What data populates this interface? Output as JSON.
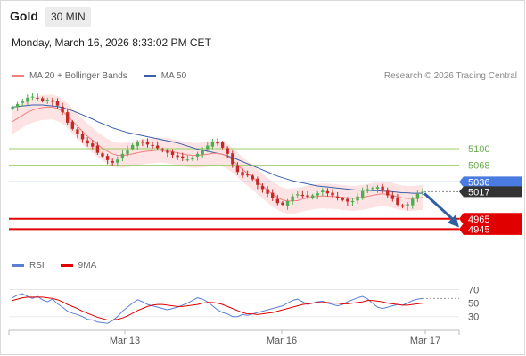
{
  "header": {
    "title": "Gold",
    "interval": "30 MIN",
    "datetime": "Monday, March 16, 2026 8:33:02 PM CET"
  },
  "legend": {
    "items": [
      {
        "label": "MA 20 + Bollinger Bands",
        "color": "#f08080"
      },
      {
        "label": "MA 50",
        "color": "#3a5fa8"
      }
    ],
    "credit": "Research © 2026 Trading Central"
  },
  "rsi_legend": {
    "items": [
      {
        "label": "RSI",
        "color": "#5b7fd6"
      },
      {
        "label": "9MA",
        "color": "#e00000"
      }
    ]
  },
  "colors": {
    "bull_candle": "#4caf50",
    "bear_candle": "#c62828",
    "resistance": "#9ccc65",
    "support": "#e00000",
    "pivot": "#4a7be0",
    "current": "#333333",
    "band": "#fde3e3",
    "forecast_arrow": "#2f5fa3"
  },
  "chart_data": [
    {
      "type": "candlestick",
      "title": "Gold",
      "x_ticks": [
        "Mar 13",
        "Mar 16",
        "Mar 17"
      ],
      "ylim": [
        4920,
        5220
      ],
      "grid": false,
      "legend_placement": "top-left",
      "levels": [
        {
          "value": 5100,
          "label": "5100",
          "kind": "resistance"
        },
        {
          "value": 5068,
          "label": "5068",
          "kind": "resistance"
        },
        {
          "value": 5036,
          "label": "5036",
          "kind": "pivot"
        },
        {
          "value": 5017,
          "label": "5017",
          "kind": "current"
        },
        {
          "value": 4965,
          "label": "4965",
          "kind": "support"
        },
        {
          "value": 4945,
          "label": "4945",
          "kind": "support"
        }
      ],
      "close": [
        5180,
        5186,
        5191,
        5198,
        5200,
        5197,
        5192,
        5194,
        5190,
        5183,
        5170,
        5150,
        5138,
        5128,
        5118,
        5110,
        5104,
        5092,
        5085,
        5078,
        5073,
        5079,
        5090,
        5098,
        5107,
        5113,
        5112,
        5108,
        5105,
        5101,
        5096,
        5092,
        5088,
        5084,
        5081,
        5079,
        5083,
        5090,
        5098,
        5106,
        5112,
        5110,
        5102,
        5090,
        5070,
        5055,
        5048,
        5049,
        5041,
        5030,
        5022,
        5013,
        5004,
        4995,
        4992,
        4999,
        5008,
        5012,
        5009,
        5007,
        5010,
        5014,
        5019,
        5014,
        5010,
        5004,
        5001,
        4998,
        4999,
        5008,
        5018,
        5022,
        5024,
        5026,
        5021,
        5010,
        5003,
        4992,
        4988,
        4993,
        5003,
        5013,
        5017
      ],
      "ma20": [
        5152,
        5158,
        5164,
        5170,
        5174,
        5177,
        5179,
        5180,
        5180,
        5177,
        5172,
        5163,
        5153,
        5143,
        5133,
        5124,
        5116,
        5108,
        5101,
        5095,
        5090,
        5087,
        5087,
        5088,
        5090,
        5092,
        5094,
        5095,
        5096,
        5097,
        5097,
        5096,
        5094,
        5092,
        5090,
        5088,
        5087,
        5087,
        5088,
        5089,
        5091,
        5091,
        5089,
        5085,
        5078,
        5069,
        5060,
        5052,
        5045,
        5036,
        5028,
        5020,
        5012,
        5006,
        5001,
        4999,
        4999,
        5000,
        5003,
        5005,
        5007,
        5008,
        5009,
        5008,
        5008,
        5007,
        5006,
        5005,
        5004,
        5005,
        5006,
        5008,
        5010,
        5012,
        5013,
        5012,
        5010,
        5007,
        5005,
        5004,
        5004,
        5005,
        5006
      ],
      "ma50": [
        5180,
        5181,
        5182,
        5183,
        5184,
        5184,
        5184,
        5183,
        5182,
        5181,
        5179,
        5176,
        5173,
        5169,
        5165,
        5161,
        5157,
        5152,
        5148,
        5144,
        5140,
        5137,
        5134,
        5131,
        5129,
        5127,
        5125,
        5123,
        5121,
        5119,
        5117,
        5115,
        5113,
        5111,
        5108,
        5105,
        5102,
        5099,
        5097,
        5095,
        5093,
        5091,
        5089,
        5086,
        5083,
        5079,
        5075,
        5071,
        5067,
        5063,
        5059,
        5055,
        5051,
        5047,
        5044,
        5041,
        5038,
        5036,
        5034,
        5032,
        5030,
        5028,
        5027,
        5026,
        5025,
        5024,
        5023,
        5022,
        5021,
        5020,
        5020,
        5020,
        5019,
        5019,
        5018,
        5018,
        5017,
        5016,
        5015,
        5015,
        5014,
        5014,
        5014
      ],
      "bb_width": 24,
      "forecast": {
        "from": 5017,
        "to": 4945,
        "direction": "down"
      }
    },
    {
      "type": "line",
      "title": "RSI",
      "yticks": [
        70,
        50,
        30
      ],
      "ylim": [
        15,
        80
      ],
      "series": [
        {
          "name": "RSI",
          "values": [
            58,
            62,
            64,
            60,
            57,
            60,
            55,
            52,
            56,
            49,
            44,
            38,
            35,
            33,
            30,
            26,
            25,
            22,
            21,
            20,
            24,
            30,
            38,
            44,
            50,
            55,
            52,
            48,
            46,
            44,
            42,
            40,
            42,
            44,
            47,
            50,
            54,
            58,
            56,
            52,
            46,
            40,
            36,
            34,
            30,
            30,
            33,
            32,
            34,
            36,
            38,
            40,
            42,
            44,
            46,
            50,
            54,
            56,
            52,
            48,
            50,
            52,
            53,
            50,
            48,
            46,
            48,
            52,
            55,
            58,
            60,
            56,
            50,
            44,
            42,
            44,
            46,
            48,
            47,
            50,
            54,
            56,
            57
          ]
        },
        {
          "name": "9MA",
          "values": [
            54,
            56,
            58,
            59,
            59,
            59,
            59,
            58,
            57,
            55,
            52,
            48,
            45,
            42,
            38,
            35,
            32,
            29,
            27,
            25,
            25,
            26,
            28,
            31,
            35,
            39,
            42,
            45,
            47,
            48,
            48,
            47,
            46,
            45,
            45,
            46,
            47,
            48,
            50,
            51,
            51,
            50,
            48,
            45,
            42,
            39,
            36,
            34,
            34,
            33,
            34,
            35,
            36,
            38,
            40,
            42,
            44,
            46,
            48,
            49,
            50,
            51,
            51,
            51,
            50,
            50,
            49,
            49,
            50,
            51,
            52,
            54,
            54,
            53,
            52,
            50,
            49,
            48,
            47,
            47,
            48,
            49,
            50
          ]
        }
      ]
    }
  ]
}
